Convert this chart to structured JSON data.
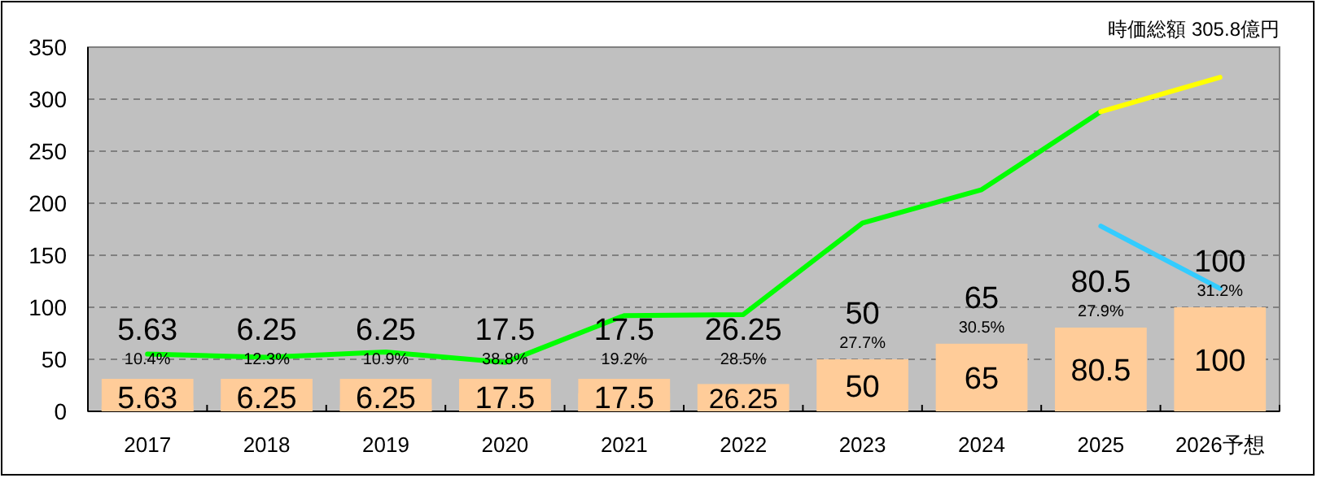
{
  "chart_data": {
    "type": "bar",
    "title": "時価総額 305.8億円",
    "categories": [
      "2017",
      "2018",
      "2019",
      "2020",
      "2021",
      "2022",
      "2023",
      "2024",
      "2025",
      "2026予想"
    ],
    "ylim": [
      0,
      350
    ],
    "yticks": [
      0,
      50,
      100,
      150,
      200,
      250,
      300,
      350
    ],
    "grid": "y",
    "series": [
      {
        "color": "#ffcc99",
        "values": [
          5.63,
          6.25,
          6.25,
          17.5,
          17.5,
          26.25,
          50,
          65,
          80.5,
          100
        ],
        "value_labels": [
          "5.63",
          "6.25",
          "6.25",
          "17.5",
          "17.5",
          "26.25",
          "50",
          "65",
          "80.5",
          "100"
        ]
      },
      {
        "type": "line",
        "color": "#00ff00",
        "values": [
          55,
          52,
          57,
          47,
          92,
          93,
          181,
          213,
          288,
          null
        ]
      },
      {
        "type": "line",
        "color": "#ffff00",
        "values": [
          null,
          null,
          null,
          null,
          null,
          null,
          null,
          null,
          288,
          321
        ]
      },
      {
        "type": "line",
        "color": "#33ccff",
        "values": [
          null,
          null,
          null,
          null,
          null,
          null,
          null,
          null,
          178,
          118
        ]
      }
    ],
    "annotations": [
      "5.63",
      "10.4%",
      "6.25",
      "12.3%",
      "6.25",
      "10.9%",
      "17.5",
      "38.8%",
      "17.5",
      "19.2%",
      "26.25",
      "28.5%",
      "50",
      "27.7%",
      "65",
      "30.5%",
      "80.5",
      "27.9%",
      "100",
      "31.2%"
    ]
  }
}
